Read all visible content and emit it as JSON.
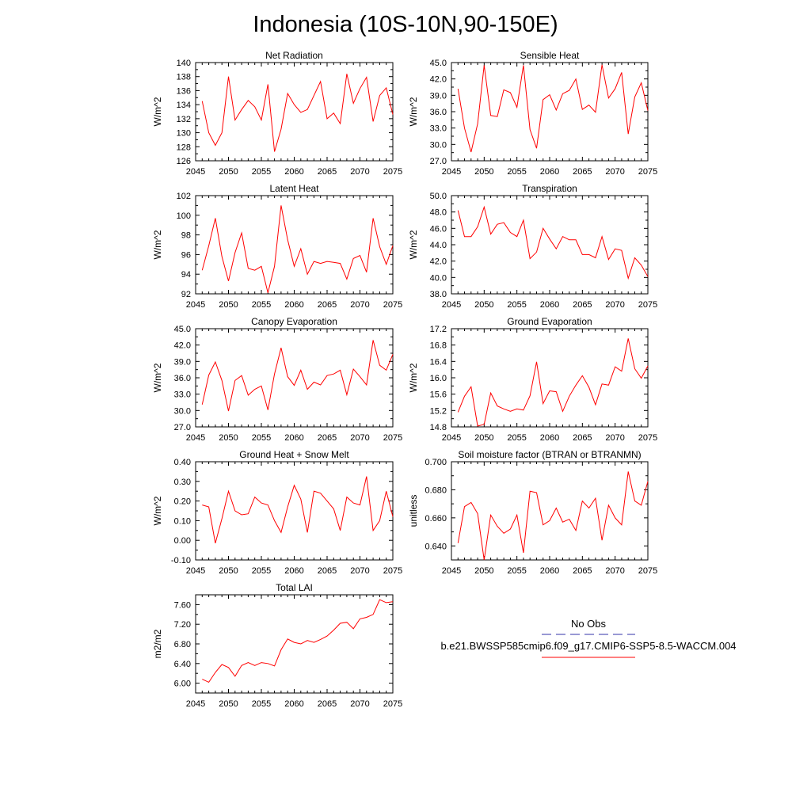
{
  "figure": {
    "title": "Indonesia (10S-10N,90-150E)"
  },
  "legend": {
    "entries": [
      {
        "label": "No Obs",
        "color": "#3333aa",
        "dash": true
      },
      {
        "label": "b.e21.BWSSP585cmip6.f09_g17.CMIP6-SSP5-8.5-WACCM.004",
        "color": "#ff0000",
        "dash": false
      }
    ]
  },
  "chart_data": [
    {
      "type": "line",
      "title": "Net Radiation",
      "ylabel": "W/m^2",
      "xlim": [
        2045,
        2075
      ],
      "ylim": [
        126,
        140
      ],
      "xticks": [
        2045,
        2050,
        2055,
        2060,
        2065,
        2070,
        2075
      ],
      "xtick_labels": [
        "2045",
        "2050",
        "2055",
        "2060",
        "2065",
        "2070",
        "2075"
      ],
      "yticks": [
        126,
        128,
        130,
        132,
        134,
        136,
        138,
        140
      ],
      "ytick_labels": [
        "126",
        "128",
        "130",
        "132",
        "134",
        "136",
        "138",
        "140"
      ],
      "grid": false,
      "series": [
        {
          "color": "#ff0000",
          "x": [
            2046,
            2047,
            2048,
            2049,
            2050,
            2051,
            2052,
            2053,
            2054,
            2055,
            2056,
            2057,
            2058,
            2059,
            2060,
            2061,
            2062,
            2063,
            2064,
            2065,
            2066,
            2067,
            2068,
            2069,
            2070,
            2071,
            2072,
            2073,
            2074,
            2075
          ],
          "values": [
            134.5,
            130.0,
            128.2,
            130.0,
            138.0,
            131.8,
            133.3,
            134.6,
            133.7,
            131.8,
            136.9,
            127.3,
            130.5,
            135.6,
            134.0,
            132.9,
            133.3,
            135.3,
            137.3,
            132.0,
            132.8,
            131.3,
            138.4,
            134.2,
            136.3,
            137.9,
            131.6,
            135.3,
            136.4,
            132.6
          ]
        }
      ]
    },
    {
      "type": "line",
      "title": "Sensible Heat",
      "ylabel": "W/m^2",
      "xlim": [
        2045,
        2075
      ],
      "ylim": [
        27,
        45
      ],
      "xticks": [
        2045,
        2050,
        2055,
        2060,
        2065,
        2070,
        2075
      ],
      "xtick_labels": [
        "2045",
        "2050",
        "2055",
        "2060",
        "2065",
        "2070",
        "2075"
      ],
      "yticks": [
        27,
        30,
        33,
        36,
        39,
        42,
        45
      ],
      "ytick_labels": [
        "27.0",
        "30.0",
        "33.0",
        "36.0",
        "39.0",
        "42.0",
        "45.0"
      ],
      "grid": false,
      "series": [
        {
          "color": "#ff0000",
          "x": [
            2046,
            2047,
            2048,
            2049,
            2050,
            2051,
            2052,
            2053,
            2054,
            2055,
            2056,
            2057,
            2058,
            2059,
            2060,
            2061,
            2062,
            2063,
            2064,
            2065,
            2066,
            2067,
            2068,
            2069,
            2070,
            2071,
            2072,
            2073,
            2074,
            2075
          ],
          "values": [
            40.2,
            33.0,
            28.6,
            33.8,
            44.5,
            35.3,
            35.1,
            40.0,
            39.5,
            36.8,
            44.5,
            32.7,
            29.3,
            38.2,
            39.1,
            36.3,
            39.3,
            39.9,
            42.0,
            36.4,
            37.2,
            35.9,
            44.6,
            38.5,
            40.2,
            43.2,
            31.9,
            38.7,
            41.3,
            36.2
          ]
        }
      ]
    },
    {
      "type": "line",
      "title": "Latent Heat",
      "ylabel": "W/m^2",
      "xlim": [
        2045,
        2075
      ],
      "ylim": [
        92,
        102
      ],
      "xticks": [
        2045,
        2050,
        2055,
        2060,
        2065,
        2070,
        2075
      ],
      "xtick_labels": [
        "2045",
        "2050",
        "2055",
        "2060",
        "2065",
        "2070",
        "2075"
      ],
      "yticks": [
        92,
        94,
        96,
        98,
        100,
        102
      ],
      "ytick_labels": [
        "92",
        "94",
        "96",
        "98",
        "100",
        "102"
      ],
      "grid": false,
      "series": [
        {
          "color": "#ff0000",
          "x": [
            2046,
            2047,
            2048,
            2049,
            2050,
            2051,
            2052,
            2053,
            2054,
            2055,
            2056,
            2057,
            2058,
            2059,
            2060,
            2061,
            2062,
            2063,
            2064,
            2065,
            2066,
            2067,
            2068,
            2069,
            2070,
            2071,
            2072,
            2073,
            2074,
            2075
          ],
          "values": [
            94.4,
            96.9,
            99.7,
            95.8,
            93.3,
            96.2,
            98.2,
            94.6,
            94.4,
            94.8,
            92.1,
            94.8,
            101.0,
            97.5,
            94.8,
            96.6,
            94.0,
            95.3,
            95.1,
            95.3,
            95.2,
            95.1,
            93.5,
            95.6,
            95.9,
            94.2,
            99.7,
            96.8,
            95.0,
            96.9
          ]
        }
      ]
    },
    {
      "type": "line",
      "title": "Transpiration",
      "ylabel": "W/m^2",
      "xlim": [
        2045,
        2075
      ],
      "ylim": [
        38,
        50
      ],
      "xticks": [
        2045,
        2050,
        2055,
        2060,
        2065,
        2070,
        2075
      ],
      "xtick_labels": [
        "2045",
        "2050",
        "2055",
        "2060",
        "2065",
        "2070",
        "2075"
      ],
      "yticks": [
        38,
        40,
        42,
        44,
        46,
        48,
        50
      ],
      "ytick_labels": [
        "38.0",
        "40.0",
        "42.0",
        "44.0",
        "46.0",
        "48.0",
        "50.0"
      ],
      "grid": false,
      "series": [
        {
          "color": "#ff0000",
          "x": [
            2046,
            2047,
            2048,
            2049,
            2050,
            2051,
            2052,
            2053,
            2054,
            2055,
            2056,
            2057,
            2058,
            2059,
            2060,
            2061,
            2062,
            2063,
            2064,
            2065,
            2066,
            2067,
            2068,
            2069,
            2070,
            2071,
            2072,
            2073,
            2074,
            2075
          ],
          "values": [
            48.2,
            45.0,
            45.0,
            46.2,
            48.6,
            45.3,
            46.5,
            46.7,
            45.5,
            45.0,
            47.0,
            42.3,
            43.1,
            46.0,
            44.7,
            43.5,
            45.0,
            44.6,
            44.6,
            42.8,
            42.8,
            42.4,
            45.0,
            42.2,
            43.5,
            43.3,
            39.9,
            42.4,
            41.5,
            40.1
          ]
        }
      ]
    },
    {
      "type": "line",
      "title": "Canopy Evaporation",
      "ylabel": "W/m^2",
      "xlim": [
        2045,
        2075
      ],
      "ylim": [
        27,
        45
      ],
      "xticks": [
        2045,
        2050,
        2055,
        2060,
        2065,
        2070,
        2075
      ],
      "xtick_labels": [
        "2045",
        "2050",
        "2055",
        "2060",
        "2065",
        "2070",
        "2075"
      ],
      "yticks": [
        27,
        30,
        33,
        36,
        39,
        42,
        45
      ],
      "ytick_labels": [
        "27.0",
        "30.0",
        "33.0",
        "36.0",
        "39.0",
        "42.0",
        "45.0"
      ],
      "grid": false,
      "series": [
        {
          "color": "#ff0000",
          "x": [
            2046,
            2047,
            2048,
            2049,
            2050,
            2051,
            2052,
            2053,
            2054,
            2055,
            2056,
            2057,
            2058,
            2059,
            2060,
            2061,
            2062,
            2063,
            2064,
            2065,
            2066,
            2067,
            2068,
            2069,
            2070,
            2071,
            2072,
            2073,
            2074,
            2075
          ],
          "values": [
            31.1,
            36.5,
            38.9,
            35.5,
            29.9,
            35.5,
            36.4,
            32.8,
            33.9,
            34.5,
            30.1,
            36.7,
            41.5,
            36.2,
            34.6,
            37.4,
            33.9,
            35.2,
            34.7,
            36.4,
            36.7,
            37.4,
            32.9,
            37.6,
            36.2,
            34.7,
            42.9,
            38.3,
            37.4,
            40.3
          ]
        }
      ]
    },
    {
      "type": "line",
      "title": "Ground Evaporation",
      "ylabel": "W/m^2",
      "xlim": [
        2045,
        2075
      ],
      "ylim": [
        14.8,
        17.2
      ],
      "xticks": [
        2045,
        2050,
        2055,
        2060,
        2065,
        2070,
        2075
      ],
      "xtick_labels": [
        "2045",
        "2050",
        "2055",
        "2060",
        "2065",
        "2070",
        "2075"
      ],
      "yticks": [
        14.8,
        15.2,
        15.6,
        16.0,
        16.4,
        16.8,
        17.2
      ],
      "ytick_labels": [
        "14.8",
        "15.2",
        "15.6",
        "16.0",
        "16.4",
        "16.8",
        "17.2"
      ],
      "grid": false,
      "series": [
        {
          "color": "#ff0000",
          "x": [
            2046,
            2047,
            2048,
            2049,
            2050,
            2051,
            2052,
            2053,
            2054,
            2055,
            2056,
            2057,
            2058,
            2059,
            2060,
            2061,
            2062,
            2063,
            2064,
            2065,
            2066,
            2067,
            2068,
            2069,
            2070,
            2071,
            2072,
            2073,
            2074,
            2075
          ],
          "values": [
            15.16,
            15.55,
            15.78,
            14.82,
            14.86,
            15.63,
            15.31,
            15.24,
            15.18,
            15.24,
            15.21,
            15.56,
            16.39,
            15.37,
            15.68,
            15.66,
            15.18,
            15.55,
            15.82,
            16.05,
            15.77,
            15.34,
            15.85,
            15.82,
            16.27,
            16.16,
            16.96,
            16.22,
            15.99,
            16.29
          ]
        }
      ]
    },
    {
      "type": "line",
      "title": "Ground Heat + Snow Melt",
      "ylabel": "W/m^2",
      "xlim": [
        2045,
        2075
      ],
      "ylim": [
        -0.1,
        0.4
      ],
      "xticks": [
        2045,
        2050,
        2055,
        2060,
        2065,
        2070,
        2075
      ],
      "xtick_labels": [
        "2045",
        "2050",
        "2055",
        "2060",
        "2065",
        "2070",
        "2075"
      ],
      "yticks": [
        -0.1,
        0.0,
        0.1,
        0.2,
        0.3,
        0.4
      ],
      "ytick_labels": [
        "-0.10",
        "0.00",
        "0.10",
        "0.20",
        "0.30",
        "0.40"
      ],
      "grid": false,
      "series": [
        {
          "color": "#ff0000",
          "x": [
            2046,
            2047,
            2048,
            2049,
            2050,
            2051,
            2052,
            2053,
            2054,
            2055,
            2056,
            2057,
            2058,
            2059,
            2060,
            2061,
            2062,
            2063,
            2064,
            2065,
            2066,
            2067,
            2068,
            2069,
            2070,
            2071,
            2072,
            2073,
            2074,
            2075
          ],
          "values": [
            0.18,
            0.17,
            -0.015,
            0.11,
            0.25,
            0.15,
            0.13,
            0.135,
            0.22,
            0.19,
            0.18,
            0.1,
            0.04,
            0.17,
            0.28,
            0.21,
            0.04,
            0.25,
            0.24,
            0.2,
            0.16,
            0.05,
            0.22,
            0.19,
            0.18,
            0.325,
            0.05,
            0.1,
            0.25,
            0.12
          ]
        }
      ]
    },
    {
      "type": "line",
      "title": "Soil moisture factor (BTRAN or BTRANMN)",
      "ylabel": "unitless",
      "xlim": [
        2045,
        2075
      ],
      "ylim": [
        0.63,
        0.7
      ],
      "xticks": [
        2045,
        2050,
        2055,
        2060,
        2065,
        2070,
        2075
      ],
      "xtick_labels": [
        "2045",
        "2050",
        "2055",
        "2060",
        "2065",
        "2070",
        "2075"
      ],
      "yticks": [
        0.64,
        0.66,
        0.68,
        0.7
      ],
      "ytick_labels": [
        "0.640",
        "0.660",
        "0.680",
        "0.700"
      ],
      "grid": false,
      "series": [
        {
          "color": "#ff0000",
          "x": [
            2046,
            2047,
            2048,
            2049,
            2050,
            2051,
            2052,
            2053,
            2054,
            2055,
            2056,
            2057,
            2058,
            2059,
            2060,
            2061,
            2062,
            2063,
            2064,
            2065,
            2066,
            2067,
            2068,
            2069,
            2070,
            2071,
            2072,
            2073,
            2074,
            2075
          ],
          "values": [
            0.642,
            0.668,
            0.671,
            0.663,
            0.63,
            0.662,
            0.654,
            0.649,
            0.652,
            0.662,
            0.635,
            0.679,
            0.678,
            0.655,
            0.658,
            0.667,
            0.657,
            0.659,
            0.651,
            0.672,
            0.667,
            0.674,
            0.644,
            0.669,
            0.66,
            0.655,
            0.693,
            0.672,
            0.669,
            0.686
          ]
        }
      ]
    },
    {
      "type": "line",
      "title": "Total LAI",
      "ylabel": "m2/m2",
      "xlim": [
        2045,
        2075
      ],
      "ylim": [
        5.8,
        7.8
      ],
      "xticks": [
        2045,
        2050,
        2055,
        2060,
        2065,
        2070,
        2075
      ],
      "xtick_labels": [
        "2045",
        "2050",
        "2055",
        "2060",
        "2065",
        "2070",
        "2075"
      ],
      "yticks": [
        6.0,
        6.4,
        6.8,
        7.2,
        7.6
      ],
      "ytick_labels": [
        "6.00",
        "6.40",
        "6.80",
        "7.20",
        "7.60"
      ],
      "grid": false,
      "series": [
        {
          "color": "#ff0000",
          "x": [
            2046,
            2047,
            2048,
            2049,
            2050,
            2051,
            2052,
            2053,
            2054,
            2055,
            2056,
            2057,
            2058,
            2059,
            2060,
            2061,
            2062,
            2063,
            2064,
            2065,
            2066,
            2067,
            2068,
            2069,
            2070,
            2071,
            2072,
            2073,
            2074,
            2075
          ],
          "values": [
            6.08,
            6.02,
            6.22,
            6.38,
            6.32,
            6.14,
            6.36,
            6.42,
            6.36,
            6.42,
            6.4,
            6.35,
            6.68,
            6.9,
            6.83,
            6.8,
            6.87,
            6.83,
            6.89,
            6.96,
            7.08,
            7.22,
            7.24,
            7.11,
            7.31,
            7.34,
            7.4,
            7.7,
            7.64,
            7.66
          ]
        }
      ]
    }
  ]
}
